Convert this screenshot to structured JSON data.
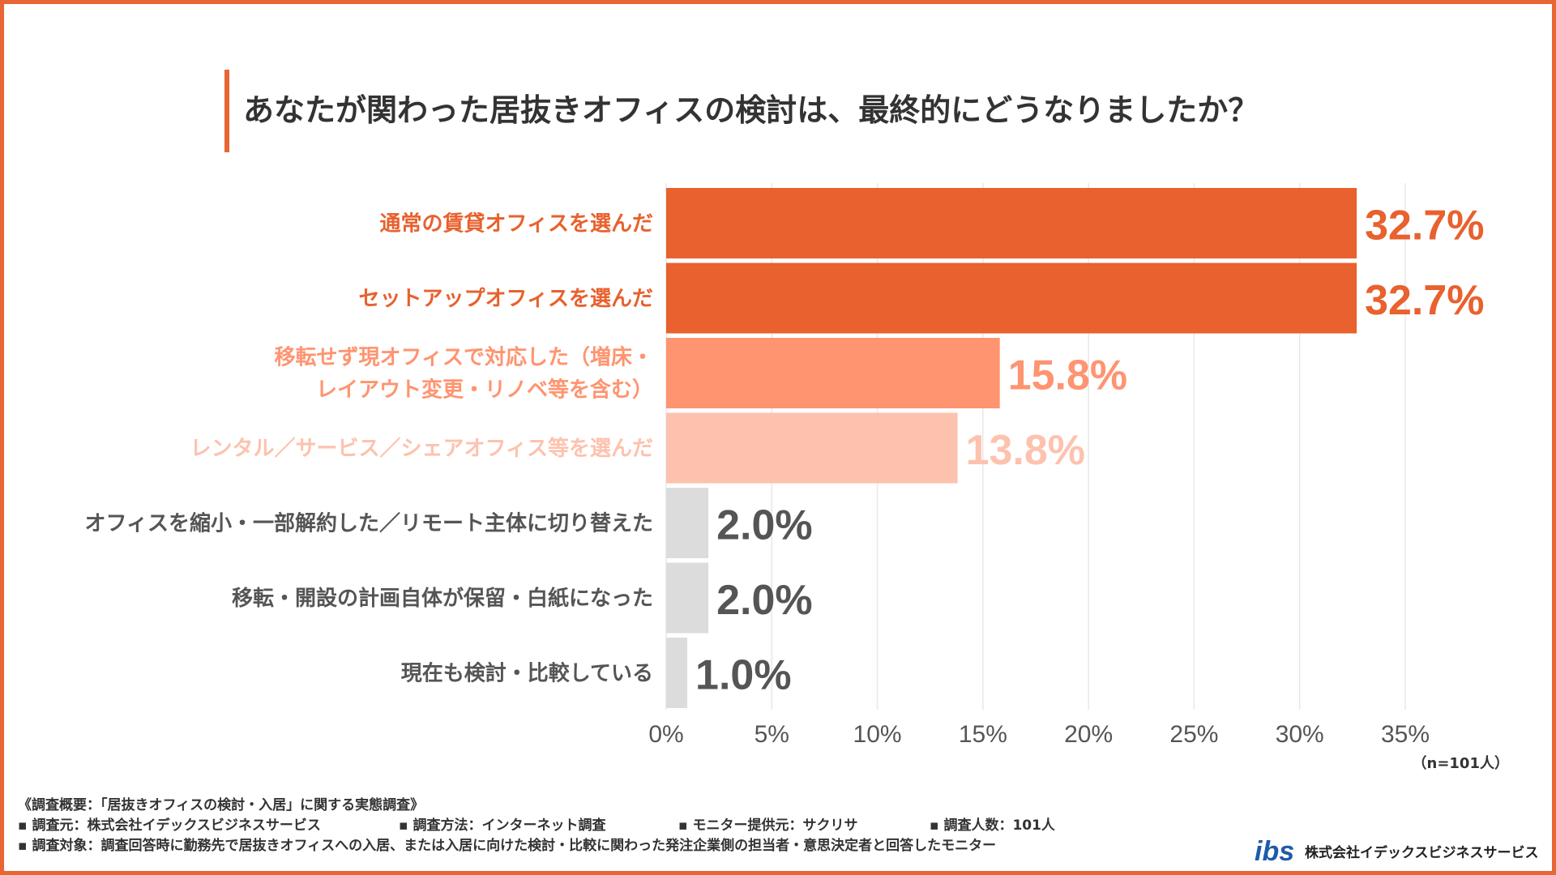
{
  "title": "あなたが関わった居抜きオフィスの検討は、最終的にどうなりましたか？",
  "chart_data": {
    "type": "bar",
    "orientation": "horizontal",
    "categories": [
      "通常の賃貸オフィスを選んだ",
      "セットアップオフィスを選んだ",
      "移転せず現オフィスで対応した（増床・\nレイアウト変更・リノベ等を含む）",
      "レンタル／サービス／シェアオフィス等を選んだ",
      "オフィスを縮小・一部解約した／リモート主体に切り替えた",
      "移転・開設の計画自体が保留・白紙になった",
      "現在も検討・比較している"
    ],
    "values": [
      32.7,
      32.7,
      15.8,
      13.8,
      2.0,
      2.0,
      1.0
    ],
    "value_labels": [
      "32.7%",
      "32.7%",
      "15.8%",
      "13.8%",
      "2.0%",
      "2.0%",
      "1.0%"
    ],
    "bar_colors": [
      "#E8612E",
      "#E8612E",
      "#FF9470",
      "#FDC2AE",
      "#DCDCDC",
      "#DCDCDC",
      "#DCDCDC"
    ],
    "label_colors": [
      "#E8612E",
      "#E8612E",
      "#FF9470",
      "#FDC2AE",
      "#555555",
      "#555555",
      "#555555"
    ],
    "xlim": [
      0,
      35
    ],
    "xticks": [
      0,
      5,
      10,
      15,
      20,
      25,
      30,
      35
    ],
    "xtick_labels": [
      "0%",
      "5%",
      "10%",
      "15%",
      "20%",
      "25%",
      "30%",
      "35%"
    ],
    "grid": true,
    "sample_note": "（n=101人）"
  },
  "notes": {
    "heading": "《調査概要：「居抜きオフィスの検討・入居」に関する実態調査》",
    "row1": [
      "▪ 調査元：株式会社イデックスビジネスサービス",
      "▪ 調査方法：インターネット調査",
      "▪ モニター提供元：サクリサ",
      "▪ 調査人数：101人"
    ],
    "row2": "▪ 調査対象：調査回答時に勤務先で居抜きオフィスへの入居、または入居に向けた検討・比較に関わった発注企業側の担当者・意思決定者と回答したモニター"
  },
  "logo": {
    "mark": "ibs",
    "text": "株式会社イデックスビジネスサービス",
    "color": "#1E5BA8"
  },
  "colors": {
    "frame": "#E86534",
    "grid": "#E8E8E8",
    "tick_text": "#555555"
  }
}
